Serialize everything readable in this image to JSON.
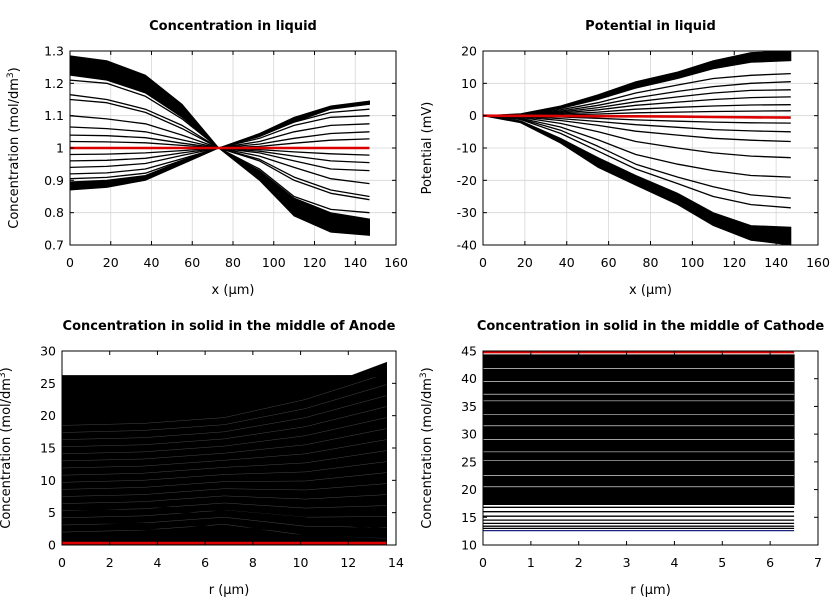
{
  "chart_data": [
    {
      "type": "line",
      "title": "Concentration in liquid",
      "xlabel": "x (µm)",
      "ylabel_main": "Concentration (mol/dm",
      "ylabel_sup": "3",
      "ylabel_end": ")",
      "xlim": [
        0,
        160
      ],
      "ylim": [
        0.7,
        1.3
      ],
      "xticks": [
        0,
        20,
        40,
        60,
        80,
        100,
        120,
        140,
        160
      ],
      "yticks": [
        0.7,
        0.8,
        0.9,
        1,
        1.1,
        1.2,
        1.3
      ],
      "ytick_labels": [
        "0.7",
        "0.8",
        "0.9",
        "1",
        "1.1",
        "1.2",
        "1.3"
      ],
      "grid": true,
      "x_knots": [
        0,
        18,
        37,
        55,
        73,
        93,
        110,
        128,
        147
      ],
      "band_upper": {
        "top": [
          1.285,
          1.27,
          1.225,
          1.135,
          1.0,
          0.9,
          0.79,
          0.74,
          0.73
        ],
        "bottom": [
          1.225,
          1.21,
          1.17,
          1.095,
          1.0,
          0.93,
          0.845,
          0.8,
          0.78
        ]
      },
      "band_lower": {
        "top": [
          0.895,
          0.9,
          0.915,
          0.96,
          1.0,
          1.045,
          1.095,
          1.13,
          1.145
        ],
        "bottom": [
          0.87,
          0.878,
          0.9,
          0.95,
          1.0,
          1.035,
          1.08,
          1.12,
          1.135
        ]
      },
      "series": [
        {
          "values": [
            1.21,
            1.2,
            1.16,
            1.09,
            1.0,
            0.935,
            0.85,
            0.81,
            0.8
          ]
        },
        {
          "values": [
            1.165,
            1.15,
            1.12,
            1.07,
            1.0,
            0.96,
            0.9,
            0.86,
            0.84
          ]
        },
        {
          "values": [
            1.15,
            1.14,
            1.11,
            1.06,
            1.0,
            0.965,
            0.91,
            0.87,
            0.85
          ]
        },
        {
          "values": [
            1.1,
            1.09,
            1.075,
            1.04,
            1.0,
            0.975,
            0.94,
            0.905,
            0.89
          ]
        },
        {
          "values": [
            1.065,
            1.06,
            1.05,
            1.025,
            1.0,
            0.985,
            0.96,
            0.935,
            0.93
          ]
        },
        {
          "values": [
            1.04,
            1.038,
            1.032,
            1.015,
            1.0,
            0.99,
            0.975,
            0.96,
            0.955
          ]
        },
        {
          "values": [
            1.02,
            1.019,
            1.016,
            1.008,
            1.0,
            0.995,
            0.988,
            0.982,
            0.978
          ]
        },
        {
          "values": [
            0.98,
            0.981,
            0.985,
            0.992,
            1.0,
            1.005,
            1.015,
            1.024,
            1.028
          ]
        },
        {
          "values": [
            0.96,
            0.962,
            0.968,
            0.985,
            1.0,
            1.012,
            1.03,
            1.045,
            1.05
          ]
        },
        {
          "values": [
            0.94,
            0.943,
            0.952,
            0.977,
            1.0,
            1.02,
            1.05,
            1.07,
            1.075
          ]
        },
        {
          "values": [
            0.92,
            0.923,
            0.935,
            0.967,
            1.0,
            1.03,
            1.07,
            1.095,
            1.1
          ]
        },
        {
          "values": [
            0.905,
            0.909,
            0.922,
            0.962,
            1.0,
            1.037,
            1.08,
            1.11,
            1.12
          ]
        },
        {
          "values": [
            1.0,
            1.0,
            1.0,
            1.0,
            1.0,
            1.0,
            1.0,
            1.0,
            1.0
          ],
          "color": "#dd0000"
        }
      ]
    },
    {
      "type": "line",
      "title": "Potential in liquid",
      "xlabel": "x (µm)",
      "ylabel_main": "Potential (mV)",
      "ylabel_sup": "",
      "ylabel_end": "",
      "xlim": [
        0,
        160
      ],
      "ylim": [
        -40,
        20
      ],
      "xticks": [
        0,
        20,
        40,
        60,
        80,
        100,
        120,
        140,
        160
      ],
      "yticks": [
        -40,
        -30,
        -20,
        -10,
        0,
        10,
        20
      ],
      "ytick_labels": [
        "-40",
        "-30",
        "-20",
        "-10",
        "0",
        "10",
        "20"
      ],
      "grid": true,
      "x_knots": [
        0,
        18,
        37,
        55,
        73,
        93,
        110,
        128,
        147
      ],
      "band_upper": {
        "top": [
          0,
          0.6,
          3,
          6.5,
          10.5,
          13.5,
          17,
          19.5,
          20
        ],
        "bottom": [
          0,
          0.4,
          2.2,
          5,
          8.5,
          11.5,
          14.5,
          16.5,
          17
        ]
      },
      "band_lower": {
        "top": [
          0,
          -1.6,
          -7,
          -13,
          -18.5,
          -24,
          -30,
          -34,
          -34.5
        ],
        "bottom": [
          0,
          -2.2,
          -8.5,
          -16,
          -21.5,
          -27.5,
          -34,
          -38.5,
          -40
        ]
      },
      "series": [
        {
          "values": [
            0,
            0.35,
            1.8,
            4,
            7,
            9.5,
            11.5,
            12.5,
            13
          ]
        },
        {
          "values": [
            0,
            0.3,
            1.4,
            3.2,
            5.5,
            7.5,
            9,
            10,
            10.5
          ]
        },
        {
          "values": [
            0,
            0.25,
            1.1,
            2.5,
            4.3,
            5.8,
            7,
            7.8,
            8
          ]
        },
        {
          "values": [
            0,
            0.2,
            0.8,
            1.8,
            3.2,
            4.2,
            5,
            5.6,
            5.8
          ]
        },
        {
          "values": [
            0,
            0.12,
            0.5,
            1.1,
            2,
            2.6,
            3,
            3.3,
            3.4
          ]
        },
        {
          "values": [
            0,
            0.05,
            0.2,
            0.5,
            0.9,
            1.1,
            1.3,
            1.4,
            1.5
          ]
        },
        {
          "values": [
            0,
            -0.1,
            -0.4,
            -0.8,
            -1.3,
            -1.7,
            -2,
            -2.2,
            -2.3
          ]
        },
        {
          "values": [
            0,
            -0.2,
            -0.9,
            -1.8,
            -2.8,
            -3.6,
            -4.3,
            -4.7,
            -5
          ]
        },
        {
          "values": [
            0,
            -0.35,
            -1.5,
            -3,
            -4.8,
            -6,
            -7,
            -7.6,
            -8
          ]
        },
        {
          "values": [
            0,
            -0.55,
            -2.4,
            -5,
            -8,
            -10,
            -11.5,
            -12.5,
            -13
          ]
        },
        {
          "values": [
            0,
            -0.8,
            -3.5,
            -7.5,
            -12,
            -15,
            -17,
            -18.5,
            -19
          ]
        },
        {
          "values": [
            0,
            -1,
            -4.5,
            -9.5,
            -15,
            -19,
            -22,
            -24.5,
            -25.5
          ]
        },
        {
          "values": [
            0,
            -1.2,
            -5.5,
            -11,
            -16.5,
            -21,
            -25,
            -27.5,
            -28.5
          ]
        },
        {
          "values": [
            0,
            -0.05,
            -0.1,
            -0.15,
            -0.2,
            -0.3,
            -0.4,
            -0.5,
            -0.6
          ],
          "color": "#dd0000"
        }
      ]
    },
    {
      "type": "line",
      "title": "Concentration in solid in the middle of Anode",
      "xlabel": "r (µm)",
      "ylabel_main": "Concentration (mol/dm",
      "ylabel_sup": "3",
      "ylabel_end": ")",
      "xlim": [
        0,
        14
      ],
      "ylim": [
        0,
        30
      ],
      "xticks": [
        0,
        2,
        4,
        6,
        8,
        10,
        12,
        14
      ],
      "yticks": [
        0,
        5,
        10,
        15,
        20,
        25,
        30
      ],
      "ytick_labels": [
        "0",
        "5",
        "10",
        "15",
        "20",
        "25",
        "30"
      ],
      "grid": false,
      "x_knots": [
        0,
        3.4,
        6.8,
        10.2,
        13.6
      ],
      "fill_region": {
        "top": [
          18.5,
          19,
          20.5,
          23.5,
          28.2
        ],
        "bottom": [
          0,
          0,
          0,
          0,
          0
        ]
      },
      "fill_upper": {
        "top": [
          26.2,
          26.2,
          26.2,
          26.2,
          26.2
        ],
        "bottom": [
          18.5,
          19,
          20.5,
          23.5,
          26.2
        ]
      },
      "series": [
        {
          "values": [
            25.8,
            25.9,
            26,
            26.1,
            26.2
          ]
        },
        {
          "values": [
            24.5,
            24.7,
            25.1,
            25.6,
            26.2
          ]
        },
        {
          "values": [
            23.5,
            23.8,
            24.3,
            25.1,
            26.2
          ]
        },
        {
          "values": [
            22.8,
            23.1,
            23.7,
            24.7,
            26.3
          ]
        },
        {
          "values": [
            22,
            22.4,
            23.2,
            24.4,
            26.5
          ]
        },
        {
          "values": [
            21.2,
            21.6,
            22.5,
            24,
            26.7
          ]
        },
        {
          "values": [
            20.2,
            20.7,
            21.8,
            23.6,
            27
          ]
        },
        {
          "values": [
            19.4,
            19.9,
            21.1,
            23.4,
            27.5
          ]
        },
        {
          "values": [
            6.2,
            6,
            5.3,
            4.2,
            2.5
          ]
        },
        {
          "values": [
            5.5,
            5.3,
            4.7,
            3.8,
            2.3
          ]
        },
        {
          "values": [
            3.5,
            3.3,
            2.8,
            2.1,
            1.2
          ]
        },
        {
          "values": [
            2.5,
            2.4,
            2,
            1.5,
            0.9
          ]
        },
        {
          "values": [
            0.3,
            0.3,
            0.3,
            0.3,
            0.3
          ],
          "color": "#dd0000"
        }
      ]
    },
    {
      "type": "line",
      "title": "Concentration in solid in the middle of Cathode",
      "xlabel": "r (µm)",
      "ylabel_main": "Concentration (mol/dm",
      "ylabel_sup": "3",
      "ylabel_end": ")",
      "xlim": [
        0,
        7
      ],
      "ylim": [
        10,
        45
      ],
      "xticks": [
        0,
        1,
        2,
        3,
        4,
        5,
        6,
        7
      ],
      "yticks": [
        10,
        15,
        20,
        25,
        30,
        35,
        40,
        45
      ],
      "ytick_labels": [
        "10",
        "15",
        "20",
        "25",
        "30",
        "35",
        "40",
        "45"
      ],
      "grid": false,
      "x_knots": [
        0,
        1.62,
        3.25,
        4.87,
        6.5
      ],
      "fill_region": {
        "top": [
          44.3,
          44.3,
          44.3,
          44.3,
          44.3
        ],
        "bottom": [
          17.3,
          17.3,
          17.3,
          17.3,
          17.3
        ]
      },
      "white_lines": [
        20.5,
        22.5,
        25.2,
        26.8,
        29,
        31.5,
        33.5,
        36,
        37.2,
        39.5,
        41.8
      ],
      "series": [
        {
          "values": [
            16.8,
            16.8,
            16.8,
            16.8,
            16.8
          ]
        },
        {
          "values": [
            16,
            16,
            16,
            16,
            16
          ]
        },
        {
          "values": [
            15.2,
            15.2,
            15.2,
            15.2,
            15.2
          ]
        },
        {
          "values": [
            14.5,
            14.5,
            14.5,
            14.5,
            14.5
          ]
        },
        {
          "values": [
            13.9,
            13.9,
            13.9,
            13.9,
            13.9
          ]
        },
        {
          "values": [
            13.4,
            13.4,
            13.4,
            13.4,
            13.4
          ]
        },
        {
          "values": [
            13,
            13,
            13,
            13,
            13
          ]
        },
        {
          "values": [
            12.6,
            12.6,
            12.6,
            12.6,
            12.6
          ],
          "color": "#1a237e"
        },
        {
          "values": [
            44.8,
            44.8,
            44.8,
            44.8,
            44.8
          ],
          "color": "#dd0000"
        }
      ]
    }
  ]
}
